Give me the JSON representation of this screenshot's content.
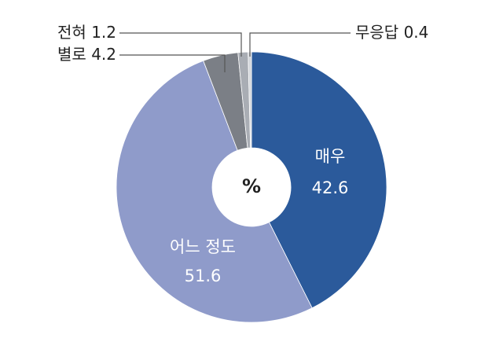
{
  "chart_data": {
    "type": "donut",
    "center_label": "%",
    "categories": [
      "매우",
      "어느 정도",
      "별로",
      "전혀",
      "무응답"
    ],
    "values": [
      42.6,
      51.6,
      4.2,
      1.2,
      0.4
    ],
    "colors": [
      "#2b5a9b",
      "#8f9bca",
      "#7b7f86",
      "#a9adb4",
      "#d3d6db"
    ]
  }
}
